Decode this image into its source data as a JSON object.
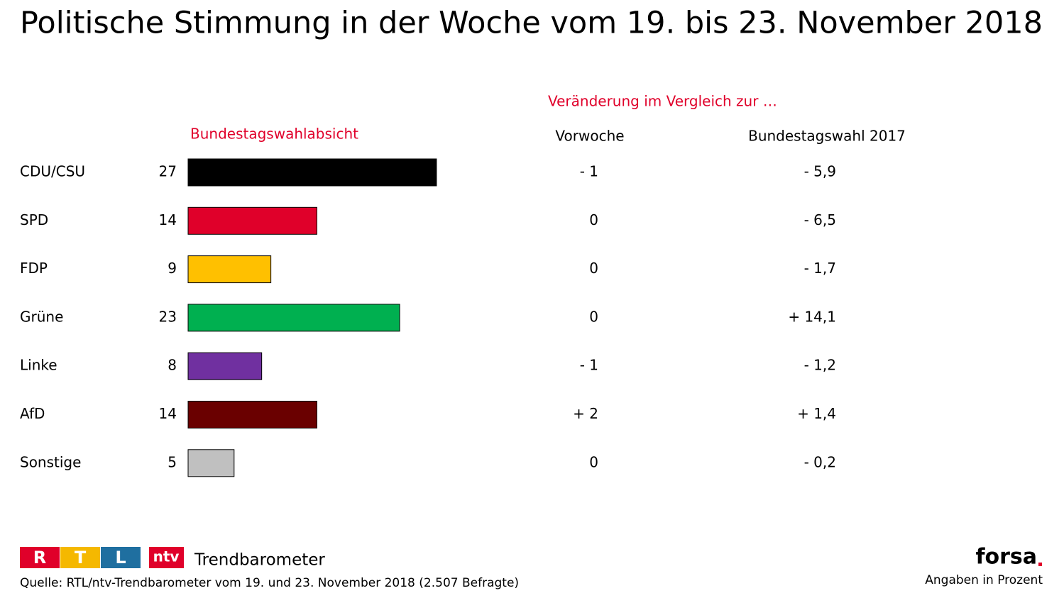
{
  "chart_data": {
    "type": "bar",
    "title": "Politische Stimmung in der Woche vom 19. bis 23. November 2018",
    "comparison_heading": "Veränderung im Vergleich zur …",
    "value_heading": "Bundestagswahlabsicht",
    "categories": [
      "CDU/CSU",
      "SPD",
      "FDP",
      "Grüne",
      "Linke",
      "AfD",
      "Sonstige"
    ],
    "values": [
      27,
      14,
      9,
      23,
      8,
      14,
      5
    ],
    "colors": [
      "#000000",
      "#e0002a",
      "#ffc000",
      "#00b050",
      "#7030a0",
      "#6a0000",
      "#c0c0c0"
    ],
    "columns": [
      {
        "name": "Vorwoche",
        "labels": [
          "- 1",
          "0",
          "0",
          "0",
          "- 1",
          "+ 2",
          "0"
        ]
      },
      {
        "name": "Bundestagswahl 2017",
        "labels": [
          "- 5,9",
          "- 6,5",
          "- 1,7",
          "+ 14,1",
          "- 1,2",
          "+ 1,4",
          "- 0,2"
        ]
      }
    ],
    "footer": {
      "rtl_letters": [
        "R",
        "T",
        "L"
      ],
      "ntv": "ntv",
      "brand": "Trendbarometer",
      "source": "Quelle: RTL/ntv-Trendbarometer vom 19. und 23. November 2018 (2.507 Befragte)",
      "forsa": "forsa",
      "note": "Angaben in Prozent"
    }
  }
}
